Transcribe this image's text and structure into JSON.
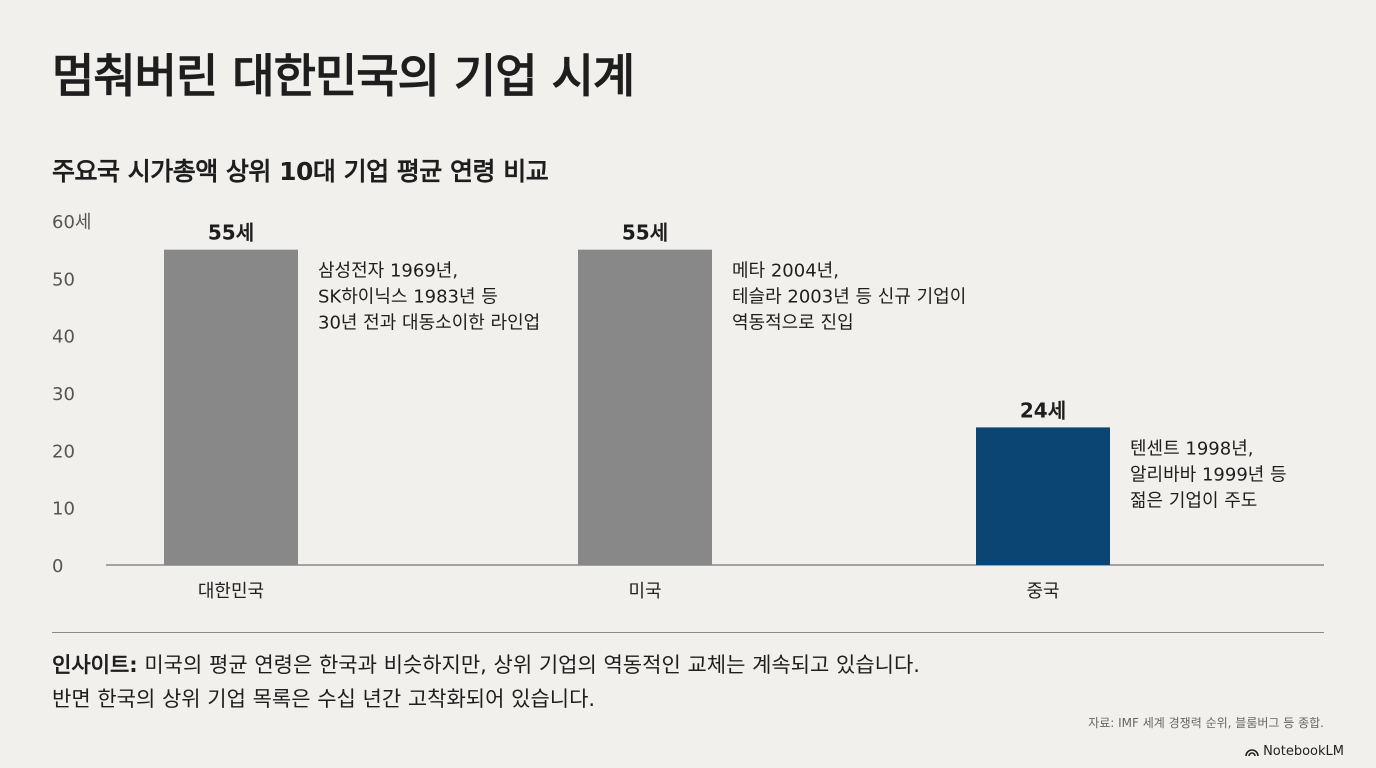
{
  "title": "멈춰버린 대한민국의 기업 시계",
  "chart_data": {
    "type": "bar",
    "title": "주요국 시가총액 상위 10대 기업 평균 연령 비교",
    "categories": [
      "대한민국",
      "미국",
      "중국"
    ],
    "values": [
      55,
      55,
      24
    ],
    "value_labels": [
      "55세",
      "55세",
      "24세"
    ],
    "bar_colors": [
      "#888888",
      "#888888",
      "#0b4574"
    ],
    "ylim": [
      0,
      60
    ],
    "yticks": [
      "0",
      "10",
      "20",
      "30",
      "40",
      "50",
      "60세"
    ],
    "annotations": [
      [
        "삼성전자 1969년,",
        "SK하이닉스 1983년 등",
        "30년 전과 대동소이한 라인업"
      ],
      [
        "메타 2004년,",
        "테슬라 2003년 등 신규 기업이",
        "역동적으로 진입"
      ],
      [
        "텐센트 1998년,",
        "알리바바 1999년 등",
        "젊은 기업이 주도"
      ]
    ],
    "grid": false,
    "legend": "none"
  },
  "insight": {
    "label": "인사이트:",
    "line1": " 미국의 평균 연령은 한국과 비슷하지만, 상위 기업의 역동적인 교체는 계속되고 있습니다.",
    "line2": "반면 한국의 상위 기업 목록은 수십 년간 고착화되어 있습니다."
  },
  "source": "자료: IMF 세계 경쟁력 순위, 블룸버그 등 종합.",
  "brand": {
    "name": "NotebookLM",
    "icon": "notebooklm-logo-icon"
  }
}
